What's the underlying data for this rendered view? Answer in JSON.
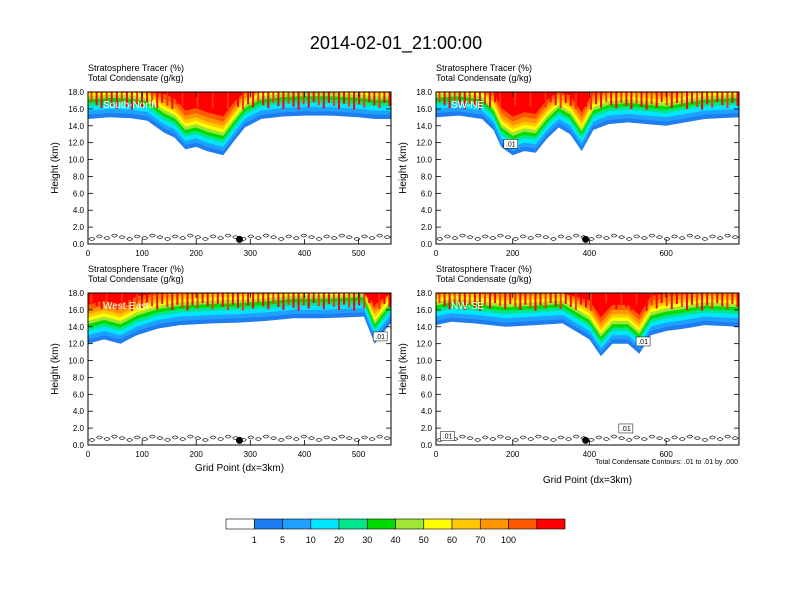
{
  "figure": {
    "title": "2014-02-01_21:00:00",
    "footnote": "Total Condensate Contours: .01 to .01 by .000"
  },
  "colorbar": {
    "colors": [
      "#ffffff",
      "#1e7df0",
      "#1ea0ff",
      "#00e6ff",
      "#00e68c",
      "#00dc00",
      "#a0e632",
      "#ffff00",
      "#ffc800",
      "#ff9600",
      "#ff5a00",
      "#ff0000"
    ],
    "labels": [
      "1",
      "5",
      "10",
      "20",
      "30",
      "40",
      "50",
      "60",
      "70",
      "100"
    ]
  },
  "chart_data": [
    {
      "type": "heatmap",
      "title": "South-North",
      "header_line1": "Stratosphere Tracer   (%)",
      "header_line2": "Total Condensate   (g/kg)",
      "ylabel": "Height (km)",
      "xlabel": "",
      "xlim": [
        0,
        560
      ],
      "ylim": [
        0,
        18
      ],
      "xticks": [
        "0",
        "100",
        "200",
        "300",
        "400",
        "500"
      ],
      "yticks": [
        "0.0",
        "2.0",
        "4.0",
        "6.0",
        "8.0",
        "10.0",
        "12.0",
        "14.0",
        "16.0",
        "18.0"
      ],
      "tracer_base_km": [
        [
          0,
          14.8
        ],
        [
          40,
          15.0
        ],
        [
          80,
          14.9
        ],
        [
          110,
          14.6
        ],
        [
          140,
          13.2
        ],
        [
          160,
          12.6
        ],
        [
          180,
          11.2
        ],
        [
          200,
          11.5
        ],
        [
          220,
          11.0
        ],
        [
          250,
          10.5
        ],
        [
          270,
          12.2
        ],
        [
          290,
          13.8
        ],
        [
          320,
          14.8
        ],
        [
          360,
          15.1
        ],
        [
          400,
          15.2
        ],
        [
          450,
          15.2
        ],
        [
          500,
          15.0
        ],
        [
          530,
          14.8
        ],
        [
          560,
          14.8
        ]
      ],
      "contour_labels": [],
      "marker_x": 280
    },
    {
      "type": "heatmap",
      "title": "SW-NE",
      "header_line1": "Stratosphere Tracer   (%)",
      "header_line2": "Total Condensate   (g/kg)",
      "ylabel": "Height (km)",
      "xlabel": "",
      "xlim": [
        0,
        790
      ],
      "ylim": [
        0,
        18
      ],
      "xticks": [
        "0",
        "200",
        "400",
        "600"
      ],
      "yticks": [
        "0.0",
        "2.0",
        "4.0",
        "6.0",
        "8.0",
        "10.0",
        "12.0",
        "14.0",
        "16.0",
        "18.0"
      ],
      "tracer_base_km": [
        [
          0,
          15.0
        ],
        [
          60,
          15.2
        ],
        [
          120,
          14.8
        ],
        [
          150,
          13.5
        ],
        [
          170,
          11.5
        ],
        [
          200,
          10.5
        ],
        [
          230,
          11.0
        ],
        [
          260,
          10.8
        ],
        [
          290,
          12.5
        ],
        [
          320,
          13.8
        ],
        [
          350,
          13.0
        ],
        [
          380,
          11.0
        ],
        [
          410,
          13.5
        ],
        [
          450,
          14.2
        ],
        [
          500,
          14.4
        ],
        [
          550,
          14.2
        ],
        [
          600,
          14.0
        ],
        [
          650,
          14.4
        ],
        [
          700,
          14.8
        ],
        [
          790,
          15.0
        ]
      ],
      "contour_labels": [
        {
          "text": ".01",
          "x": 195,
          "y": 11.8
        }
      ],
      "marker_x": 390
    },
    {
      "type": "heatmap",
      "title": "West-East",
      "header_line1": "Stratosphere Tracer   (%)",
      "header_line2": "Total Condensate   (g/kg)",
      "ylabel": "Height (km)",
      "xlabel": "Grid Point (dx=3km)",
      "xlim": [
        0,
        560
      ],
      "ylim": [
        0,
        18
      ],
      "xticks": [
        "0",
        "100",
        "200",
        "300",
        "400",
        "500"
      ],
      "yticks": [
        "0.0",
        "2.0",
        "4.0",
        "6.0",
        "8.0",
        "10.0",
        "12.0",
        "14.0",
        "16.0",
        "18.0"
      ],
      "tracer_base_km": [
        [
          0,
          12.0
        ],
        [
          30,
          12.5
        ],
        [
          60,
          12.0
        ],
        [
          90,
          13.0
        ],
        [
          130,
          13.8
        ],
        [
          170,
          14.2
        ],
        [
          230,
          14.4
        ],
        [
          280,
          14.5
        ],
        [
          330,
          14.7
        ],
        [
          380,
          15.0
        ],
        [
          430,
          15.0
        ],
        [
          470,
          15.1
        ],
        [
          510,
          15.2
        ],
        [
          530,
          12.0
        ],
        [
          560,
          14.5
        ]
      ],
      "contour_labels": [
        {
          "text": ".01",
          "x": 540,
          "y": 12.8
        }
      ],
      "marker_x": 280
    },
    {
      "type": "heatmap",
      "title": "NW-SE",
      "header_line1": "Stratosphere Tracer   (%)",
      "header_line2": "Total Condensate   (g/kg)",
      "ylabel": "Height (km)",
      "xlabel": "Grid Point (dx=3km)",
      "xlim": [
        0,
        790
      ],
      "ylim": [
        0,
        18
      ],
      "xticks": [
        "0",
        "200",
        "400",
        "600"
      ],
      "yticks": [
        "0.0",
        "2.0",
        "4.0",
        "6.0",
        "8.0",
        "10.0",
        "12.0",
        "14.0",
        "16.0",
        "18.0"
      ],
      "tracer_base_km": [
        [
          0,
          14.2
        ],
        [
          40,
          14.6
        ],
        [
          100,
          14.4
        ],
        [
          180,
          14.0
        ],
        [
          260,
          14.2
        ],
        [
          330,
          14.4
        ],
        [
          400,
          12.5
        ],
        [
          430,
          10.5
        ],
        [
          460,
          12.0
        ],
        [
          500,
          12.0
        ],
        [
          530,
          10.8
        ],
        [
          560,
          13.0
        ],
        [
          600,
          13.5
        ],
        [
          650,
          13.8
        ],
        [
          700,
          14.2
        ],
        [
          790,
          14.0
        ]
      ],
      "contour_labels": [
        {
          "text": ".01",
          "x": 540,
          "y": 12.2
        },
        {
          "text": ".01",
          "x": 495,
          "y": 1.9
        },
        {
          "text": ".01",
          "x": 30,
          "y": 1.0
        }
      ],
      "marker_x": 390
    }
  ]
}
